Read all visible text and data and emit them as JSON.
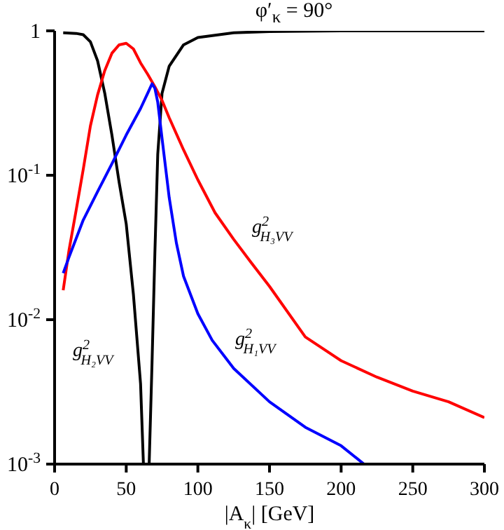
{
  "chart_data": {
    "type": "line",
    "title": "φ′$_{κ}$ = 90°",
    "xlabel": "|A$_{κ}$| [GeV]",
    "series": [
      {
        "color": "#000000",
        "x": [
          6,
          15,
          20,
          25,
          30,
          35,
          40,
          45,
          50,
          55,
          60,
          62,
          66,
          68,
          70,
          72,
          75,
          80,
          90,
          100,
          125,
          150,
          200,
          250,
          300
        ],
        "values": [
          0.97,
          0.96,
          0.94,
          0.84,
          0.62,
          0.37,
          0.19,
          0.09,
          0.046,
          0.015,
          0.0036,
          0.001,
          0.001,
          0.005,
          0.029,
          0.14,
          0.37,
          0.57,
          0.8,
          0.9,
          0.97,
          0.99,
          1,
          1,
          1
        ]
      },
      {
        "color": "#ff0000",
        "x": [
          6,
          10,
          15,
          20,
          25,
          30,
          35,
          40,
          45,
          50,
          55,
          60,
          65,
          70,
          75,
          80,
          90,
          100,
          112,
          125,
          137,
          150,
          175,
          200,
          225,
          250,
          275,
          300
        ],
        "values": [
          0.016,
          0.03,
          0.057,
          0.11,
          0.22,
          0.36,
          0.53,
          0.7,
          0.8,
          0.82,
          0.75,
          0.6,
          0.5,
          0.41,
          0.33,
          0.25,
          0.15,
          0.093,
          0.055,
          0.036,
          0.025,
          0.017,
          0.0076,
          0.0052,
          0.004,
          0.0032,
          0.0027,
          0.0021
        ]
      },
      {
        "color": "#0000ff",
        "x": [
          6,
          10,
          20,
          30,
          40,
          50,
          60,
          65,
          68,
          70,
          72,
          75,
          80,
          85,
          90,
          100,
          110,
          125,
          150,
          175,
          200,
          216
        ],
        "values": [
          0.021,
          0.027,
          0.049,
          0.077,
          0.12,
          0.19,
          0.29,
          0.37,
          0.43,
          0.4,
          0.32,
          0.18,
          0.07,
          0.034,
          0.02,
          0.011,
          0.0072,
          0.0046,
          0.0027,
          0.0018,
          0.00134,
          0.001
        ]
      }
    ],
    "annotations": [
      "g$^{2}$$_{H₃VV}$",
      "g$^{2}$$_{H₁VV}$",
      "g$^{2}$$_{H₂VV}$"
    ],
    "log": true,
    "marker": "none",
    "line_style": "solid",
    "xlim": [
      0,
      300
    ],
    "xticks": [
      0,
      50,
      100,
      150,
      200,
      250,
      300
    ],
    "ylim": [
      0.001,
      1
    ],
    "yticks": [
      {
        "value": 0.001,
        "label": "10$^{-3}$"
      },
      {
        "value": 0.01,
        "label": "10$^{-2}$"
      },
      {
        "value": 0.1,
        "label": "10$^{-1}$"
      },
      1
    ]
  }
}
